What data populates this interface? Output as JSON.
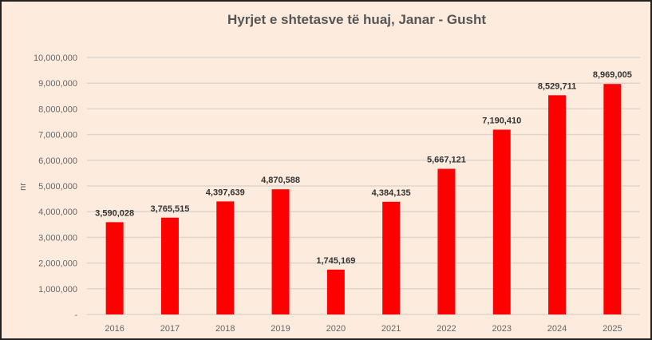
{
  "chart_data": {
    "type": "bar",
    "title": "Hyrjet e shtetasve të huaj, Janar - Gusht",
    "xlabel": "",
    "ylabel": "nr",
    "categories": [
      "2016",
      "2017",
      "2018",
      "2019",
      "2020",
      "2021",
      "2022",
      "2023",
      "2024",
      "2025"
    ],
    "values": [
      3590028,
      3765515,
      4397639,
      4870588,
      1745169,
      4384135,
      5667121,
      7190410,
      8529711,
      8969005
    ],
    "data_labels": [
      "3,590,028",
      "3,765,515",
      "4,397,639",
      "4,870,588",
      "1,745,169",
      "4,384,135",
      "5,667,121",
      "7,190,410",
      "8,529,711",
      "8,969,005"
    ],
    "ylim": [
      0,
      10000000
    ],
    "yticks": [
      0,
      1000000,
      2000000,
      3000000,
      4000000,
      5000000,
      6000000,
      7000000,
      8000000,
      9000000,
      10000000
    ],
    "ytick_labels": [
      "-",
      "1,000,000",
      "2,000,000",
      "3,000,000",
      "4,000,000",
      "5,000,000",
      "6,000,000",
      "7,000,000",
      "8,000,000",
      "9,000,000",
      "10,000,000"
    ],
    "grid": true,
    "legend": "none",
    "bar_color": "#ff0000",
    "background_color": "#fdebdd"
  }
}
